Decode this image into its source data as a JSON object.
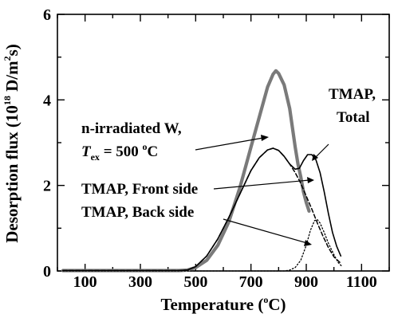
{
  "chart_data": {
    "type": "line",
    "xlabel_main": "Temperature (",
    "xlabel_sup": "o",
    "xlabel_end": "C)",
    "ylabel_main": "Desorption flux (10",
    "ylabel_sup1": "18",
    "ylabel_mid": " D/m",
    "ylabel_sup2": "2",
    "ylabel_end": "s)",
    "xlim": [
      0,
      1200
    ],
    "ylim": [
      0,
      6
    ],
    "x_ticks": [
      100,
      300,
      500,
      700,
      900,
      1100
    ],
    "y_ticks": [
      0,
      2,
      4,
      6
    ],
    "grid": false,
    "annotations": {
      "experiment_line1": "n-irradiated W,",
      "experiment_T": "T",
      "experiment_sub": "ex",
      "experiment_eq": " = 500 ",
      "experiment_sup": "o",
      "experiment_C": "C",
      "total_line1": "TMAP,",
      "total_line2": "Total",
      "front": "TMAP, Front side",
      "back": "TMAP, Back side"
    },
    "series": [
      {
        "style": "thick-gray",
        "color": "#7a7a7a",
        "x": [
          470,
          500,
          540,
          580,
          620,
          660,
          700,
          730,
          760,
          780,
          790,
          800,
          820,
          840,
          860,
          870,
          880,
          890,
          900,
          910
        ],
        "y": [
          0.02,
          0.08,
          0.25,
          0.6,
          1.15,
          1.95,
          2.9,
          3.6,
          4.3,
          4.6,
          4.68,
          4.62,
          4.35,
          3.8,
          2.9,
          2.5,
          2.2,
          1.85,
          1.6,
          1.4
        ]
      },
      {
        "style": "solid",
        "color": "#000000",
        "x": [
          470,
          500,
          540,
          580,
          620,
          660,
          700,
          730,
          760,
          780,
          800,
          820,
          840,
          860,
          875,
          890,
          905,
          920,
          935,
          950,
          965,
          980,
          995,
          1010,
          1025
        ],
        "y": [
          0.02,
          0.1,
          0.35,
          0.75,
          1.25,
          1.8,
          2.35,
          2.65,
          2.83,
          2.87,
          2.82,
          2.68,
          2.5,
          2.38,
          2.4,
          2.58,
          2.72,
          2.72,
          2.6,
          2.3,
          1.85,
          1.35,
          0.9,
          0.58,
          0.35
        ]
      },
      {
        "style": "dashed",
        "color": "#000000",
        "x": [
          470,
          500,
          540,
          580,
          620,
          660,
          700,
          730,
          760,
          780,
          800,
          820,
          840,
          860,
          880,
          900,
          920,
          940,
          960,
          980,
          1000,
          1025
        ],
        "y": [
          0.02,
          0.1,
          0.35,
          0.75,
          1.25,
          1.8,
          2.35,
          2.65,
          2.83,
          2.87,
          2.82,
          2.68,
          2.5,
          2.3,
          2.05,
          1.75,
          1.45,
          1.12,
          0.82,
          0.55,
          0.33,
          0.18
        ]
      },
      {
        "style": "dotted",
        "color": "#000000",
        "x": [
          820,
          840,
          860,
          880,
          900,
          915,
          930,
          940,
          950,
          965,
          980,
          1000,
          1015,
          1030
        ],
        "y": [
          0.0,
          0.02,
          0.08,
          0.25,
          0.6,
          0.95,
          1.18,
          1.2,
          1.12,
          0.9,
          0.65,
          0.38,
          0.2,
          0.1
        ]
      }
    ]
  }
}
